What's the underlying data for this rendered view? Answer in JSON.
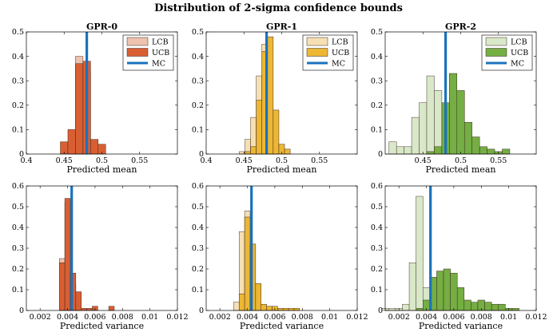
{
  "title": "Distribution of 2-sigma confidence bounds",
  "legend_labels": [
    "LCB",
    "UCB",
    "MC"
  ],
  "colors": {
    "mc": "#1a72bd",
    "gpr0": {
      "lcb": "#efc2b0",
      "ucb": "#d95f33"
    },
    "gpr1": {
      "lcb": "#f6e0b3",
      "ucb": "#edb733"
    },
    "gpr2": {
      "lcb": "#d8e8c8",
      "ucb": "#75ae43"
    }
  },
  "chart_data": [
    {
      "type": "bar",
      "panel": "mean-0",
      "title": "GPR-0",
      "xlabel": "Predicted mean",
      "xlim": [
        0.4,
        0.6
      ],
      "ylim": [
        0,
        0.5
      ],
      "xticks": [
        0.4,
        0.45,
        0.5,
        0.55
      ],
      "xticklabels": [
        "0.4",
        "0.45",
        "0.5",
        "0.55"
      ],
      "yticks": [
        0,
        0.1,
        0.2,
        0.3,
        0.4,
        0.5
      ],
      "yticklabels": [
        "0",
        "0.1",
        "0.2",
        "0.3",
        "0.4",
        "0.5"
      ],
      "bin_width": 0.01,
      "mc": 0.48,
      "legend": "top-right",
      "series": [
        {
          "name": "LCB",
          "bins": [
            0.46,
            0.47,
            0.48
          ],
          "values": [
            0.05,
            0.4,
            0.34
          ]
        },
        {
          "name": "UCB",
          "bins": [
            0.45,
            0.46,
            0.47,
            0.48,
            0.49,
            0.5
          ],
          "values": [
            0.05,
            0.1,
            0.37,
            0.38,
            0.06,
            0.04
          ]
        }
      ]
    },
    {
      "type": "bar",
      "panel": "mean-1",
      "title": "GPR-1",
      "xlabel": "Predicted mean",
      "xlim": [
        0.4,
        0.6
      ],
      "ylim": [
        0,
        0.5
      ],
      "xticks": [
        0.4,
        0.45,
        0.5,
        0.55
      ],
      "xticklabels": [
        "0.4",
        "0.45",
        "0.5",
        "0.55"
      ],
      "yticks": [
        0,
        0.1,
        0.2,
        0.3,
        0.4,
        0.5
      ],
      "yticklabels": [
        "0",
        "0.1",
        "0.2",
        "0.3",
        "0.4",
        "0.5"
      ],
      "bin_width": 0.0075,
      "mc": 0.48,
      "legend": "top-right",
      "series": [
        {
          "name": "LCB",
          "bins": [
            0.4475,
            0.455,
            0.4625,
            0.47,
            0.4775,
            0.485,
            0.4925
          ],
          "values": [
            0.01,
            0.06,
            0.15,
            0.32,
            0.45,
            0.06,
            0.01
          ]
        },
        {
          "name": "UCB",
          "bins": [
            0.455,
            0.4625,
            0.47,
            0.4775,
            0.485,
            0.4925,
            0.5,
            0.5075
          ],
          "values": [
            0.01,
            0.03,
            0.22,
            0.42,
            0.48,
            0.18,
            0.04,
            0.02
          ]
        }
      ]
    },
    {
      "type": "bar",
      "panel": "mean-2",
      "title": "GPR-2",
      "xlabel": "Predicted mean",
      "xlim": [
        0.4,
        0.6
      ],
      "ylim": [
        0,
        0.5
      ],
      "xticks": [
        0.45,
        0.5,
        0.55
      ],
      "xticklabels": [
        "0.45",
        "0.5",
        "0.55"
      ],
      "yticks": [
        0,
        0.1,
        0.2,
        0.3,
        0.4,
        0.5
      ],
      "yticklabels": [
        "0",
        "0.1",
        "0.2",
        "0.3",
        "0.4",
        "0.5"
      ],
      "bin_width": 0.01,
      "mc": 0.48,
      "legend": "top-right",
      "series": [
        {
          "name": "LCB",
          "bins": [
            0.41,
            0.42,
            0.43,
            0.44,
            0.45,
            0.46,
            0.47,
            0.48,
            0.49
          ],
          "values": [
            0.05,
            0.03,
            0.03,
            0.15,
            0.21,
            0.32,
            0.26,
            0.05,
            0.01
          ]
        },
        {
          "name": "UCB",
          "bins": [
            0.46,
            0.47,
            0.48,
            0.49,
            0.5,
            0.51,
            0.52,
            0.53,
            0.54,
            0.55,
            0.56
          ],
          "values": [
            0.01,
            0.03,
            0.21,
            0.33,
            0.26,
            0.13,
            0.07,
            0.03,
            0.02,
            0.01,
            0.02
          ]
        }
      ]
    },
    {
      "type": "bar",
      "panel": "var-0",
      "title": "",
      "xlabel": "Predicted variance",
      "xlim": [
        0.001,
        0.012
      ],
      "ylim": [
        0,
        0.6
      ],
      "xticks": [
        0.002,
        0.004,
        0.006,
        0.008,
        0.01,
        0.012
      ],
      "xticklabels": [
        "0.002",
        "0.004",
        "0.006",
        "0.008",
        "0.01",
        "0.012"
      ],
      "yticks": [
        0,
        0.1,
        0.2,
        0.3,
        0.4,
        0.5,
        0.6
      ],
      "yticklabels": [
        "0",
        "0.1",
        "0.2",
        "0.3",
        "0.4",
        "0.5",
        "0.6"
      ],
      "bin_width": 0.0004,
      "mc": 0.0043,
      "legend": "none",
      "series": [
        {
          "name": "LCB",
          "bins": [
            0.0036,
            0.004,
            0.0044,
            0.0048
          ],
          "values": [
            0.25,
            0.52,
            0.13,
            0.03
          ]
        },
        {
          "name": "UCB",
          "bins": [
            0.0036,
            0.004,
            0.0044,
            0.0048,
            0.0052,
            0.0056,
            0.006,
            0.0072
          ],
          "values": [
            0.23,
            0.54,
            0.18,
            0.09,
            0.01,
            0.01,
            0.02,
            0.02
          ]
        }
      ]
    },
    {
      "type": "bar",
      "panel": "var-1",
      "title": "",
      "xlabel": "Predicted variance",
      "xlim": [
        0.001,
        0.012
      ],
      "ylim": [
        0,
        0.6
      ],
      "xticks": [
        0.002,
        0.004,
        0.006,
        0.008,
        0.01,
        0.012
      ],
      "xticklabels": [
        "0.002",
        "0.004",
        "0.006",
        "0.008",
        "0.01",
        "0.012"
      ],
      "yticks": [
        0,
        0.1,
        0.2,
        0.3,
        0.4,
        0.5,
        0.6
      ],
      "yticklabels": [
        "0",
        "0.1",
        "0.2",
        "0.3",
        "0.4",
        "0.5",
        "0.6"
      ],
      "bin_width": 0.0004,
      "mc": 0.0043,
      "legend": "none",
      "series": [
        {
          "name": "LCB",
          "bins": [
            0.0032,
            0.0036,
            0.004,
            0.0044,
            0.0048
          ],
          "values": [
            0.04,
            0.38,
            0.48,
            0.13,
            0.04
          ]
        },
        {
          "name": "UCB",
          "bins": [
            0.0036,
            0.004,
            0.0044,
            0.0048,
            0.0052,
            0.0056,
            0.006,
            0.0064,
            0.0068,
            0.0072,
            0.0076
          ],
          "values": [
            0.08,
            0.45,
            0.32,
            0.13,
            0.03,
            0.02,
            0.02,
            0.01,
            0.01,
            0.01,
            0.01
          ]
        }
      ]
    },
    {
      "type": "bar",
      "panel": "var-2",
      "title": "",
      "xlabel": "Predicted variance",
      "xlim": [
        0.001,
        0.012
      ],
      "ylim": [
        0,
        0.6
      ],
      "xticks": [
        0.002,
        0.004,
        0.006,
        0.008,
        0.01,
        0.012
      ],
      "xticklabels": [
        "0.002",
        "0.004",
        "0.006",
        "0.008",
        "0.01",
        "0.012"
      ],
      "yticks": [
        0,
        0.1,
        0.2,
        0.3,
        0.4,
        0.5,
        0.6
      ],
      "yticklabels": [
        "0",
        "0.1",
        "0.2",
        "0.3",
        "0.4",
        "0.5",
        "0.6"
      ],
      "bin_width": 0.0005,
      "mc": 0.0043,
      "legend": "none",
      "series": [
        {
          "name": "LCB",
          "bins": [
            0.001,
            0.0015,
            0.002,
            0.0025,
            0.003,
            0.0035,
            0.004,
            0.0045,
            0.005
          ],
          "values": [
            0.01,
            0.01,
            0.01,
            0.03,
            0.23,
            0.55,
            0.11,
            0.03,
            0.01
          ]
        },
        {
          "name": "UCB",
          "bins": [
            0.0035,
            0.004,
            0.0045,
            0.005,
            0.0055,
            0.006,
            0.0065,
            0.007,
            0.0075,
            0.008,
            0.0085,
            0.009,
            0.0095,
            0.01,
            0.0105
          ],
          "values": [
            0.01,
            0.05,
            0.16,
            0.19,
            0.2,
            0.18,
            0.11,
            0.05,
            0.04,
            0.05,
            0.04,
            0.03,
            0.03,
            0.01,
            0.01
          ]
        }
      ]
    }
  ]
}
